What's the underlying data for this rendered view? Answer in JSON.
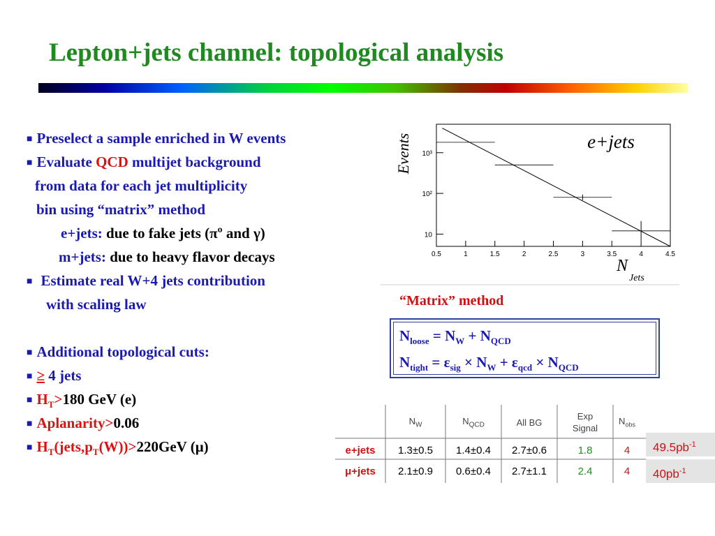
{
  "title": "Lepton+jets channel: topological analysis",
  "bullets": {
    "b1": "Preselect a sample enriched in W events",
    "b2_pre": "Evaluate ",
    "b2_qcd": "QCD",
    "b2_post": " multijet background",
    "b2_l2": "from data for each jet multiplicity",
    "b2_l3": "bin using “matrix” method",
    "ejets_label": "e+jets:",
    "ejets_text": " due to fake jets (πº and γ)",
    "mjets_label": "m+jets:",
    "mjets_text": " due to heavy flavor decays",
    "b3_l1": "Estimate real W+4 jets contribution",
    "b3_l2": "with scaling law",
    "b4": "Additional topological cuts:",
    "c1_sym": "≥",
    "c1_text": " 4 jets",
    "c2_a": "H",
    "c2_sub": "T",
    "c2_gt": ">",
    "c2_b": "180 GeV (e)",
    "c3_a": "Aplanarity>",
    "c3_b": "0.06",
    "c4_a": "H",
    "c4_sub1": "T",
    "c4_mid": "(jets,p",
    "c4_sub2": "T",
    "c4_end": "(W))>",
    "c4_b": "220GeV (μ)"
  },
  "caption": "“Matrix” method",
  "formula": {
    "l1": [
      "N",
      "loose",
      " = N",
      "W",
      " + N",
      "QCD"
    ],
    "l2": [
      "N",
      "tight",
      " = ε",
      "sig",
      " × N",
      "W",
      " + ε",
      "qcd",
      " × N",
      "QCD"
    ]
  },
  "chart_data": {
    "type": "scatter",
    "title": "e+jets",
    "ylabel": "Events",
    "xlabel": "N_Jets",
    "xlim": [
      0.5,
      4.5
    ],
    "ylog": true,
    "x_ticks": [
      "0.5",
      "1",
      "1.5",
      "2",
      "2.5",
      "3",
      "3.5",
      "4",
      "4.5"
    ],
    "y_ticks": [
      "10",
      "10²",
      "10³"
    ],
    "points": [
      {
        "x": 1,
        "y": 1800
      },
      {
        "x": 2,
        "y": 500
      },
      {
        "x": 3,
        "y": 80
      },
      {
        "x": 4,
        "y": 12
      }
    ],
    "fit_line": [
      [
        0.6,
        4000
      ],
      [
        4.5,
        5
      ]
    ]
  },
  "table": {
    "headers": [
      "N_W",
      "N_QCD",
      "All BG",
      "Exp Signal",
      "N_obs"
    ],
    "header_main": [
      "N",
      "N",
      "All BG",
      "Exp",
      "N"
    ],
    "header_sub": [
      "W",
      "QCD",
      "",
      "Signal",
      "obs"
    ],
    "rows": [
      {
        "label": "e+jets",
        "values": [
          "1.3±0.5",
          "1.4±0.4",
          "2.7±0.6",
          "1.8",
          "4"
        ],
        "lumi": "49.5pb",
        "lumi_sup": "-1"
      },
      {
        "label": "μ+jets",
        "values": [
          "2.1±0.9",
          "0.6±0.4",
          "2.7±1.1",
          "2.4",
          "4"
        ],
        "lumi": "40pb",
        "lumi_sup": "-1"
      }
    ]
  },
  "colors": {
    "title": "#1f8a1f",
    "text": "#1a1ab0",
    "accent": "#e01010"
  }
}
